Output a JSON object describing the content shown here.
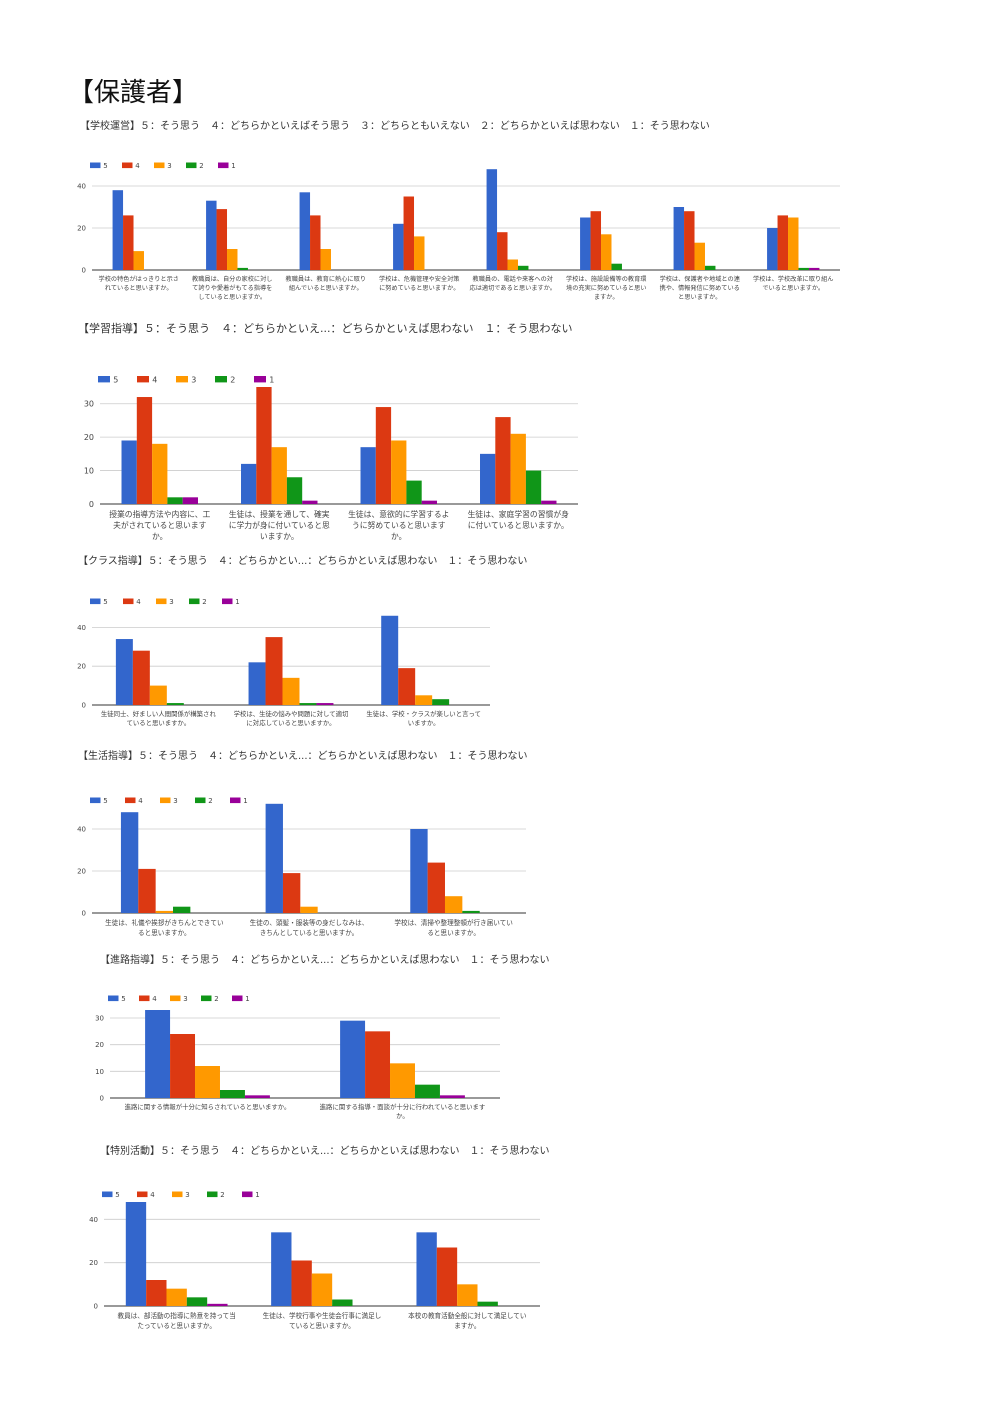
{
  "page_title": "【保護者】",
  "colors": {
    "5": "#3366cc",
    "4": "#dc3912",
    "3": "#ff9900",
    "2": "#109618",
    "1": "#990099"
  },
  "chart_data": [
    {
      "type": "bar",
      "title": "【学校運営】５：そう思う　４：どちらかといえばそう思う　３：どちらともいえない　２：どちらかといえば思わない　１：そう思わない",
      "categories": [
        [
          "学校の特色がはっきりと示さ",
          "れていると思いますか。"
        ],
        [
          "教職員は、自分の家校に対し",
          "て誇りや愛着がもてる指導を",
          "していると思いますか。"
        ],
        [
          "教職員は、教育に熱心に取り",
          "組んでいると思いますか。"
        ],
        [
          "学校は、危機管理や安全対策",
          "に努めていると思いますか。"
        ],
        [
          "教職員の、電話や来客への対",
          "応は適切であると思いますか。"
        ],
        [
          "学校は、施設設備等の教育環",
          "境の充実に努めていると思い",
          "ますか。"
        ],
        [
          "学校は、保護者や地域との連",
          "携や、情報発信に努めている",
          "と思いますか。"
        ],
        [
          "学校は、学校改革に取り組ん",
          "でいると思いますか。"
        ]
      ],
      "series": [
        {
          "name": "5",
          "values": [
            38,
            33,
            37,
            22,
            48,
            25,
            30,
            20
          ]
        },
        {
          "name": "4",
          "values": [
            26,
            29,
            26,
            35,
            18,
            28,
            28,
            26
          ]
        },
        {
          "name": "3",
          "values": [
            9,
            10,
            10,
            16,
            5,
            17,
            13,
            25
          ]
        },
        {
          "name": "2",
          "values": [
            0,
            1,
            0,
            0,
            2,
            3,
            2,
            1
          ]
        },
        {
          "name": "1",
          "values": [
            0,
            0,
            0,
            0,
            0,
            0,
            0,
            1
          ]
        }
      ],
      "yticks": [
        0,
        20,
        40
      ],
      "ylim": [
        0,
        50
      ],
      "legend": "top-left",
      "grid": true
    },
    {
      "type": "bar",
      "title": "【学習指導】５：そう思う　４：どちらかといえ...：どちらかといえば思わない　１：そう思わない",
      "categories": [
        [
          "授業の指導方法や内容に、工",
          "夫がされていると思います",
          "か。"
        ],
        [
          "生徒は、授業を通して、確実",
          "に学力が身に付いていると思",
          "いますか。"
        ],
        [
          "生徒は、意欲的に学習するよ",
          "うに努めていると思います",
          "か。"
        ],
        [
          "生徒は、家庭学習の習慣が身",
          "に付いていると思いますか。"
        ]
      ],
      "series": [
        {
          "name": "5",
          "values": [
            19,
            12,
            17,
            15
          ]
        },
        {
          "name": "4",
          "values": [
            32,
            35,
            29,
            26
          ]
        },
        {
          "name": "3",
          "values": [
            18,
            17,
            19,
            21
          ]
        },
        {
          "name": "2",
          "values": [
            2,
            8,
            7,
            10
          ]
        },
        {
          "name": "1",
          "values": [
            2,
            1,
            1,
            1
          ]
        }
      ],
      "yticks": [
        0,
        10,
        20,
        30
      ],
      "ylim": [
        0,
        35
      ],
      "legend": "top-left",
      "grid": true
    },
    {
      "type": "bar",
      "title": "【クラス指導】５：そう思う　４：どちらかとい...：どちらかといえば思わない　１：そう思わない",
      "categories": [
        [
          "生徒同士、好ましい人間関係が構築され",
          "ていると思いますか。"
        ],
        [
          "学校は、生徒の悩みや問題に対して適切",
          "に対応していると思いますか。"
        ],
        [
          "生徒は、学校・クラスが楽しいと言って",
          "いますか。"
        ]
      ],
      "series": [
        {
          "name": "5",
          "values": [
            34,
            22,
            46
          ]
        },
        {
          "name": "4",
          "values": [
            28,
            35,
            19
          ]
        },
        {
          "name": "3",
          "values": [
            10,
            14,
            5
          ]
        },
        {
          "name": "2",
          "values": [
            1,
            1,
            3
          ]
        },
        {
          "name": "1",
          "values": [
            0,
            1,
            0
          ]
        }
      ],
      "yticks": [
        0,
        20,
        40
      ],
      "ylim": [
        0,
        50
      ],
      "legend": "top-left",
      "grid": true
    },
    {
      "type": "bar",
      "title": "【生活指導】５：そう思う　４：どちらかといえ...：どちらかといえば思わない　１：そう思わない",
      "categories": [
        [
          "生徒は、礼儀や挨拶がきちんとできてい",
          "ると思いますか。"
        ],
        [
          "生徒の、頭髪・服装等の身だしなみは、",
          "きちんとしていると思いますか。"
        ],
        [
          "学校は、清掃や整理整頓が行き届いてい",
          "ると思いますか。"
        ]
      ],
      "series": [
        {
          "name": "5",
          "values": [
            48,
            52,
            40
          ]
        },
        {
          "name": "4",
          "values": [
            21,
            19,
            24
          ]
        },
        {
          "name": "3",
          "values": [
            1,
            3,
            8
          ]
        },
        {
          "name": "2",
          "values": [
            3,
            0,
            1
          ]
        },
        {
          "name": "1",
          "values": [
            0,
            0,
            0
          ]
        }
      ],
      "yticks": [
        0,
        20,
        40
      ],
      "ylim": [
        0,
        50
      ],
      "legend": "top-left",
      "grid": true
    },
    {
      "type": "bar",
      "title": "【進路指導】５：そう思う　４：どちらかといえ...：どちらかといえば思わない　１：そう思わない",
      "categories": [
        [
          "進路に関する情報が十分に知らされていると思いますか。"
        ],
        [
          "進路に関する指導・面談が十分に行われていると思います",
          "か。"
        ]
      ],
      "series": [
        {
          "name": "5",
          "values": [
            33,
            29
          ]
        },
        {
          "name": "4",
          "values": [
            24,
            25
          ]
        },
        {
          "name": "3",
          "values": [
            12,
            13
          ]
        },
        {
          "name": "2",
          "values": [
            3,
            5
          ]
        },
        {
          "name": "1",
          "values": [
            1,
            1
          ]
        }
      ],
      "yticks": [
        0,
        10,
        20,
        30
      ],
      "ylim": [
        0,
        33
      ],
      "legend": "top-left",
      "grid": true
    },
    {
      "type": "bar",
      "title": "【特別活動】５：そう思う　４：どちらかといえ...：どちらかといえば思わない　１：そう思わない",
      "categories": [
        [
          "教員は、部活動の指導に熱意を持って当",
          "たっていると思いますか。"
        ],
        [
          "生徒は、学校行事や生徒会行事に満足し",
          "ていると思いますか。"
        ],
        [
          "本校の教育活動全般に対して満足してい",
          "ますか。"
        ]
      ],
      "series": [
        {
          "name": "5",
          "values": [
            48,
            34,
            34
          ]
        },
        {
          "name": "4",
          "values": [
            12,
            21,
            27
          ]
        },
        {
          "name": "3",
          "values": [
            8,
            15,
            10
          ]
        },
        {
          "name": "2",
          "values": [
            4,
            3,
            2
          ]
        },
        {
          "name": "1",
          "values": [
            1,
            0,
            0
          ]
        }
      ],
      "yticks": [
        0,
        20,
        40
      ],
      "ylim": [
        0,
        48
      ],
      "legend": "top-left",
      "grid": true
    }
  ]
}
